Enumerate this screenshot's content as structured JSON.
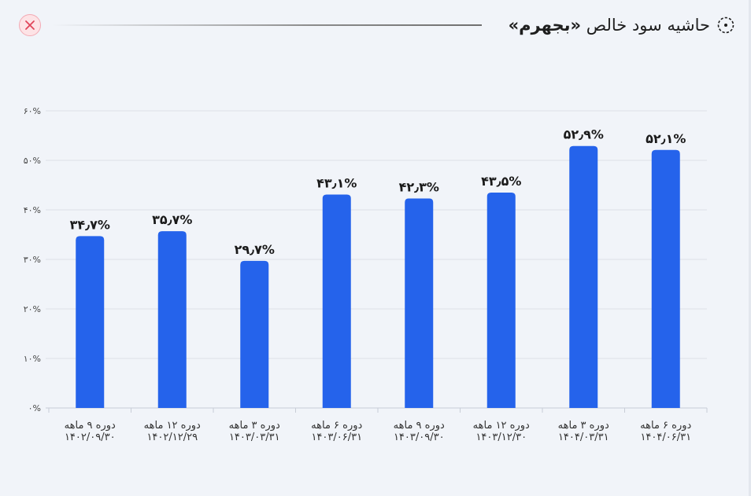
{
  "header": {
    "title_prefix": "حاشیه سود خالص",
    "title_symbol": "«بجهرم»",
    "title_icon": "circle-dots-icon",
    "close_icon": "close-icon",
    "close_color": "#e0455a"
  },
  "chart_data": {
    "type": "bar",
    "title": "حاشیه سود خالص «بجهرم»",
    "categories": [
      {
        "period": "دوره ۹ ماهه",
        "date": "۱۴۰۲/۰۹/۳۰"
      },
      {
        "period": "دوره ۱۲ ماهه",
        "date": "۱۴۰۲/۱۲/۲۹"
      },
      {
        "period": "دوره ۳ ماهه",
        "date": "۱۴۰۳/۰۳/۳۱"
      },
      {
        "period": "دوره ۶ ماهه",
        "date": "۱۴۰۳/۰۶/۳۱"
      },
      {
        "period": "دوره ۹ ماهه",
        "date": "۱۴۰۳/۰۹/۳۰"
      },
      {
        "period": "دوره ۱۲ ماهه",
        "date": "۱۴۰۳/۱۲/۳۰"
      },
      {
        "period": "دوره ۳ ماهه",
        "date": "۱۴۰۴/۰۳/۳۱"
      },
      {
        "period": "دوره ۶ ماهه",
        "date": "۱۴۰۴/۰۶/۳۱"
      }
    ],
    "values": [
      34.7,
      35.7,
      29.7,
      43.1,
      42.3,
      43.5,
      52.9,
      52.1
    ],
    "value_labels": [
      "۳۴٫۷%",
      "۳۵٫۷%",
      "۲۹٫۷%",
      "۴۳٫۱%",
      "۴۲٫۳%",
      "۴۳٫۵%",
      "۵۲٫۹%",
      "۵۲٫۱%"
    ],
    "y_ticks": [
      0,
      10,
      20,
      30,
      40,
      50,
      60
    ],
    "y_tick_labels": [
      "۰%",
      "۱۰%",
      "۲۰%",
      "۳۰%",
      "۴۰%",
      "۵۰%",
      "۶۰%"
    ],
    "ylim": [
      0,
      60
    ],
    "xlabel": "",
    "ylabel": "",
    "grid": true,
    "bar_color": "#2563eb"
  }
}
